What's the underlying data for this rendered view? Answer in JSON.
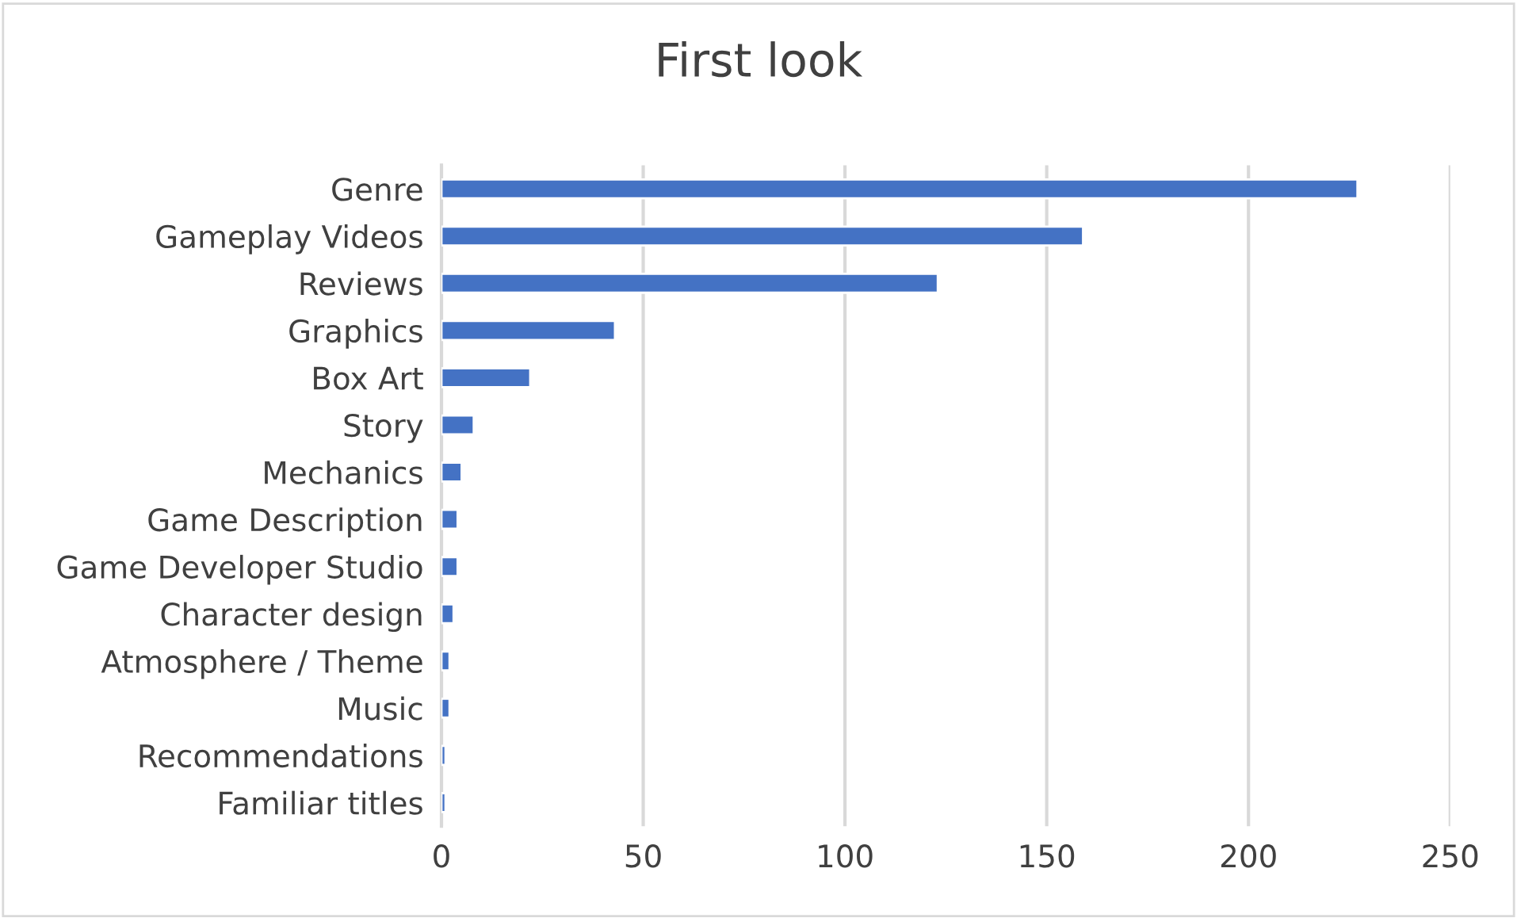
{
  "chart_data": {
    "type": "bar",
    "orientation": "horizontal",
    "title": "First look",
    "categories": [
      "Genre",
      "Gameplay Videos",
      "Reviews",
      "Graphics",
      "Box Art",
      "Story",
      "Mechanics",
      "Game Description",
      "Game Developer Studio",
      "Character design",
      "Atmosphere / Theme",
      "Music",
      "Recommendations",
      "Familiar titles"
    ],
    "values": [
      227,
      159,
      123,
      43,
      22,
      8,
      5,
      4,
      4,
      3,
      2,
      2,
      1,
      1
    ],
    "color": "#4472c4",
    "xlim": [
      0,
      250
    ],
    "xticks": [
      0,
      50,
      100,
      150,
      200,
      250
    ],
    "grid": "x",
    "legend": false
  }
}
